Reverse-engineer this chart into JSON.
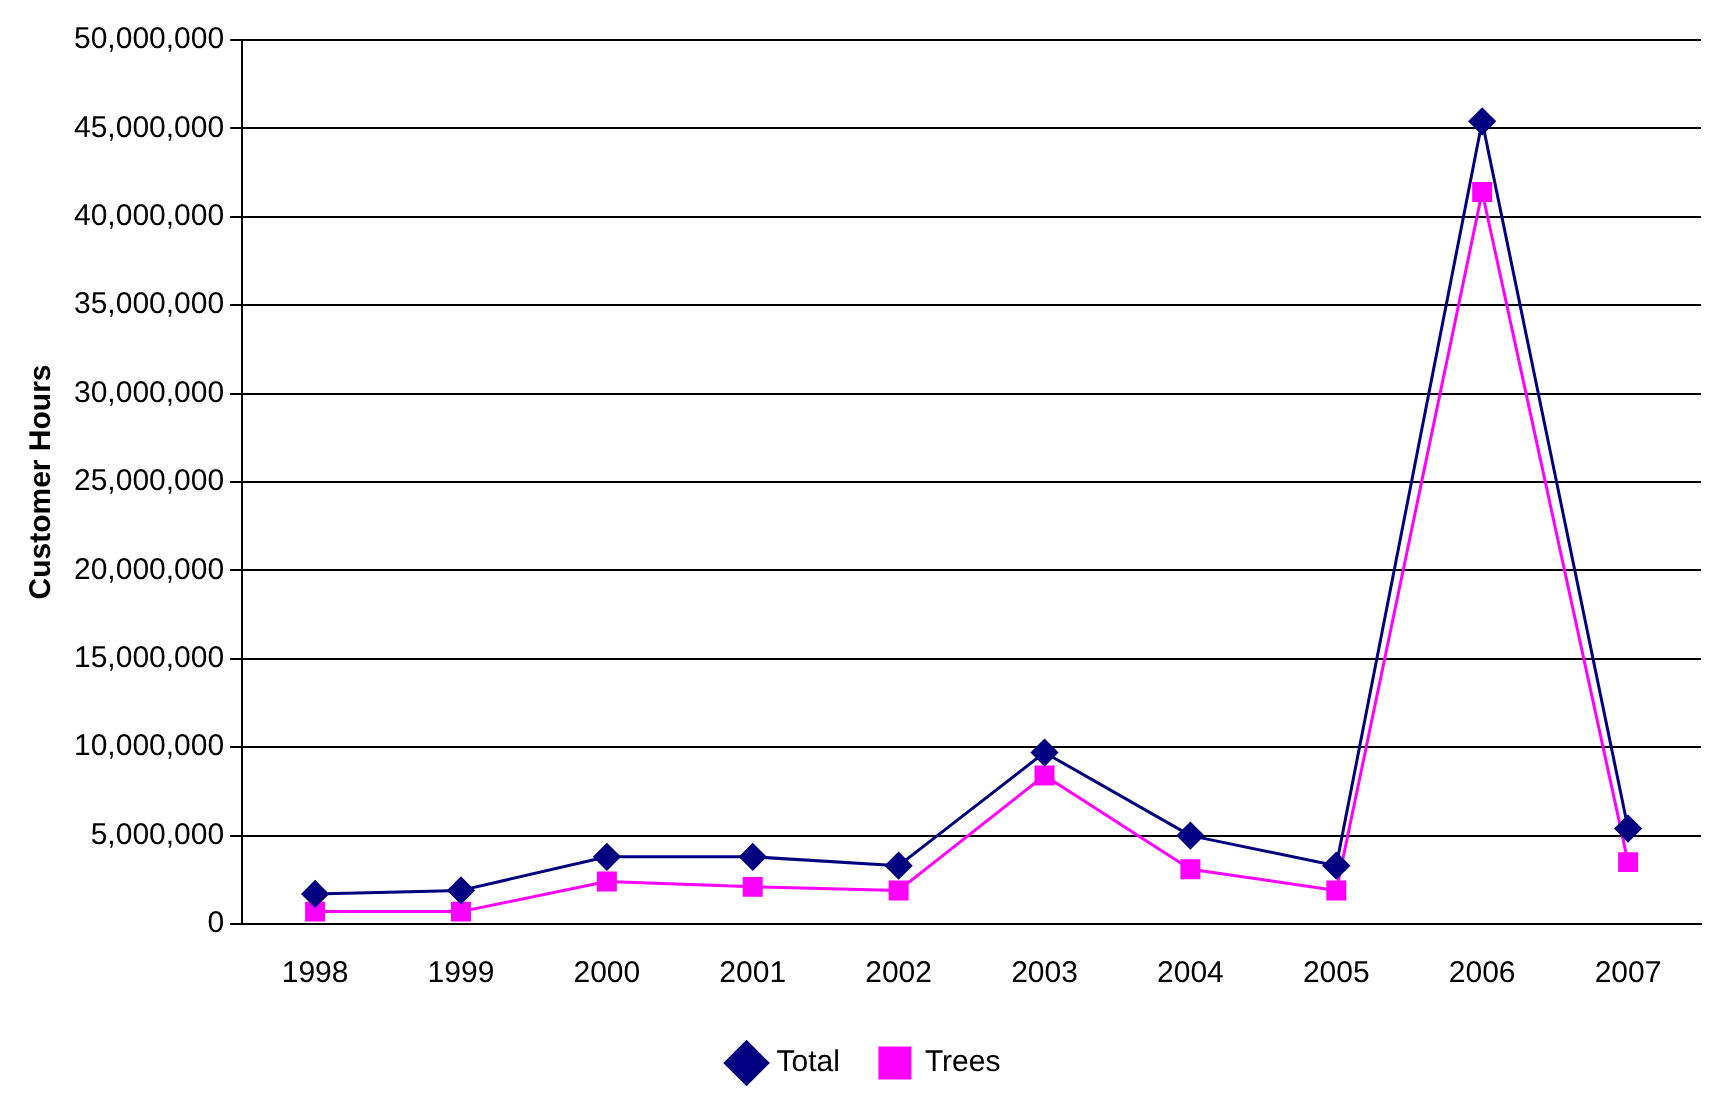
{
  "chart_data": {
    "type": "line",
    "ylabel": "Customer Hours",
    "categories": [
      "1998",
      "1999",
      "2000",
      "2001",
      "2002",
      "2003",
      "2004",
      "2005",
      "2006",
      "2007"
    ],
    "series": [
      {
        "name": "Total",
        "color": "#000080",
        "marker": "diamond",
        "values": [
          1700000,
          1900000,
          3800000,
          3800000,
          3300000,
          9700000,
          5000000,
          3300000,
          45400000,
          5400000
        ]
      },
      {
        "name": "Trees",
        "color": "#ff00ff",
        "marker": "square",
        "values": [
          700000,
          700000,
          2400000,
          2100000,
          1900000,
          8400000,
          3100000,
          1900000,
          41400000,
          3500000
        ]
      }
    ],
    "ylim": [
      0,
      50000000
    ],
    "yticks": [
      {
        "value": 0,
        "label": "0"
      },
      {
        "value": 5000000,
        "label": "5,000,000"
      },
      {
        "value": 10000000,
        "label": "10,000,000"
      },
      {
        "value": 15000000,
        "label": "15,000,000"
      },
      {
        "value": 20000000,
        "label": "20,000,000"
      },
      {
        "value": 25000000,
        "label": "25,000,000"
      },
      {
        "value": 30000000,
        "label": "30,000,000"
      },
      {
        "value": 35000000,
        "label": "35,000,000"
      },
      {
        "value": 40000000,
        "label": "40,000,000"
      },
      {
        "value": 45000000,
        "label": "45,000,000"
      },
      {
        "value": 50000000,
        "label": "50,000,000"
      }
    ],
    "grid": "y",
    "legend": "bottom"
  }
}
